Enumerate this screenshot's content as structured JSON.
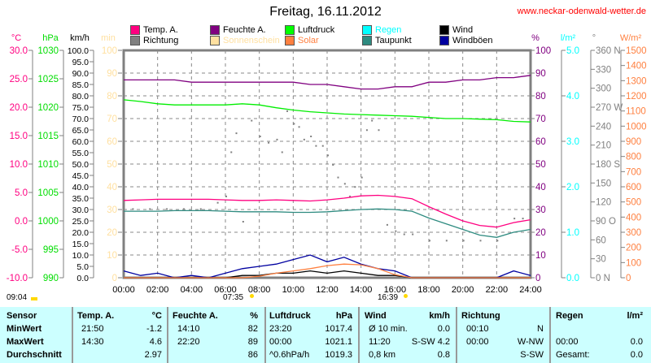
{
  "title": "Freitag, 16.11.2012",
  "url": "www.neckar-odenwald-wetter.de",
  "legend": [
    {
      "label": "Temp. A.",
      "color": "#ff0080"
    },
    {
      "label": "Feuchte A.",
      "color": "#800080"
    },
    {
      "label": "Luftdruck",
      "color": "#00ff00"
    },
    {
      "label": "Regen",
      "color": "#00ffff"
    },
    {
      "label": "Wind",
      "color": "#000000"
    },
    {
      "label": "Richtung",
      "color": "#808080"
    },
    {
      "label": "Sonnenschein",
      "color": "#ffe0a0"
    },
    {
      "label": "Solar",
      "color": "#ff8040"
    },
    {
      "label": "Taupunkt",
      "color": "#2e8b80"
    },
    {
      "label": "Windböen",
      "color": "#0000a0"
    }
  ],
  "chart_data": {
    "type": "line",
    "title": "Freitag, 16.11.2012",
    "x_ticks": [
      "00:00",
      "02:00",
      "04:00",
      "06:00",
      "08:00",
      "10:00",
      "12:00",
      "14:00",
      "16:00",
      "18:00",
      "20:00",
      "22:00",
      "24:00"
    ],
    "axes": [
      {
        "unit": "°C",
        "color": "#ff0080",
        "min": -10,
        "max": 30,
        "ticks": [
          "30.0",
          "25.0",
          "20.0",
          "15.0",
          "10.0",
          "5.0",
          "0.0",
          "-5.0",
          "-10.0"
        ]
      },
      {
        "unit": "hPa",
        "color": "#00dd00",
        "min": 990,
        "max": 1030,
        "ticks": [
          "1030",
          "1025",
          "1020",
          "1015",
          "1010",
          "1005",
          "1000",
          "995",
          "990"
        ]
      },
      {
        "unit": "km/h",
        "color": "#000000",
        "min": 0,
        "max": 100,
        "ticks": [
          "100.0",
          "95.0",
          "90.0",
          "85.0",
          "80.0",
          "75.0",
          "70.0",
          "65.0",
          "60.0",
          "55.0",
          "50.0",
          "45.0",
          "40.0",
          "35.0",
          "30.0",
          "25.0",
          "20.0",
          "15.0",
          "10.0",
          "5.0",
          "0.0"
        ]
      },
      {
        "unit": "min",
        "color": "#ffe0a0",
        "min": 0,
        "max": 100,
        "ticks": [
          "100",
          "90",
          "80",
          "70",
          "60",
          "50",
          "40",
          "30",
          "20",
          "10",
          "0"
        ]
      },
      {
        "unit": "%",
        "color": "#800080",
        "min": 0,
        "max": 100,
        "ticks": [
          "100",
          "90",
          "80",
          "70",
          "60",
          "50",
          "40",
          "30",
          "20",
          "10",
          "0"
        ]
      },
      {
        "unit": "l/m²",
        "color": "#00ffff",
        "min": 0,
        "max": 5,
        "ticks": [
          "5.0",
          "4.0",
          "3.0",
          "2.0",
          "1.0",
          "0.0"
        ]
      },
      {
        "unit": "°",
        "color": "#808080",
        "min": 0,
        "max": 360,
        "ticks": [
          "360 N",
          "330",
          "300",
          "270 W",
          "240",
          "210",
          "180 S",
          "150",
          "120",
          "90 O",
          "60",
          "30",
          "0 N"
        ]
      },
      {
        "unit": "W/m²",
        "color": "#ff8040",
        "min": 0,
        "max": 1500,
        "ticks": [
          "1500",
          "1400",
          "1300",
          "1200",
          "1100",
          "1000",
          "900",
          "800",
          "700",
          "600",
          "500",
          "400",
          "300",
          "200",
          "100",
          "0"
        ]
      }
    ],
    "hours": [
      0,
      1,
      2,
      3,
      4,
      5,
      6,
      7,
      8,
      9,
      10,
      11,
      12,
      13,
      14,
      15,
      16,
      17,
      18,
      19,
      20,
      21,
      22,
      23,
      24
    ],
    "series": [
      {
        "name": "Temp. A.",
        "axis": 0,
        "color": "#ff0080",
        "values": [
          3.6,
          3.7,
          3.8,
          3.8,
          3.8,
          3.8,
          3.7,
          3.6,
          3.6,
          3.7,
          3.6,
          3.5,
          3.7,
          4.0,
          4.4,
          4.5,
          4.3,
          3.9,
          2.5,
          1.2,
          0.0,
          -0.8,
          -1.1,
          -0.3,
          0.2
        ]
      },
      {
        "name": "Taupunkt",
        "axis": 0,
        "color": "#2e8b80",
        "values": [
          1.7,
          1.7,
          1.7,
          1.8,
          1.8,
          1.8,
          1.7,
          1.6,
          1.6,
          1.6,
          1.5,
          1.5,
          1.6,
          1.8,
          2.0,
          2.1,
          2.0,
          1.7,
          0.5,
          -0.5,
          -1.5,
          -2.5,
          -2.9,
          -2.0,
          -1.5
        ]
      },
      {
        "name": "Luftdruck",
        "axis": 1,
        "color": "#00ee00",
        "values": [
          1021.3,
          1021.0,
          1020.6,
          1020.4,
          1020.4,
          1020.4,
          1020.4,
          1020.6,
          1020.4,
          1019.9,
          1019.5,
          1019.2,
          1019.0,
          1018.8,
          1018.7,
          1018.6,
          1018.5,
          1018.4,
          1018.2,
          1018.0,
          1018.0,
          1017.9,
          1017.8,
          1017.5,
          1017.4
        ]
      },
      {
        "name": "Feuchte A.",
        "axis": 4,
        "color": "#800080",
        "values": [
          87,
          87,
          87,
          87,
          86,
          86,
          86,
          86,
          86,
          86,
          86,
          85,
          85,
          84,
          83,
          83,
          84,
          84,
          86,
          86,
          87,
          87,
          88,
          88,
          89
        ]
      },
      {
        "name": "Windböen",
        "axis": 2,
        "color": "#0000a0",
        "values": [
          3,
          1,
          2,
          0,
          1,
          0,
          2,
          4,
          5,
          6,
          8,
          10,
          7,
          9,
          6,
          4,
          3,
          0,
          0,
          0,
          0,
          0,
          0,
          3,
          1
        ]
      },
      {
        "name": "Wind",
        "axis": 2,
        "color": "#000000",
        "values": [
          0,
          0,
          0,
          0,
          0,
          0,
          0,
          1,
          1,
          2,
          2,
          3,
          2,
          3,
          2,
          1,
          1,
          0,
          0,
          0,
          0,
          0,
          0,
          0,
          0
        ]
      },
      {
        "name": "Solar",
        "axis": 7,
        "color": "#ff8040",
        "values": [
          0,
          0,
          0,
          0,
          0,
          0,
          0,
          0,
          10,
          30,
          45,
          60,
          80,
          90,
          85,
          60,
          20,
          0,
          0,
          0,
          0,
          0,
          0,
          0,
          0
        ]
      }
    ],
    "direction_points": [
      [
        0.5,
        110
      ],
      [
        1.5,
        110
      ],
      [
        2.5,
        110
      ],
      [
        3.5,
        110
      ],
      [
        4.5,
        110
      ],
      [
        5.5,
        120
      ],
      [
        6,
        130
      ],
      [
        6.3,
        200
      ],
      [
        6.6,
        230
      ],
      [
        7,
        90
      ],
      [
        7.5,
        250
      ],
      [
        8,
        225
      ],
      [
        8.5,
        215
      ],
      [
        9,
        220
      ],
      [
        9.3,
        200
      ],
      [
        9.6,
        265
      ],
      [
        10,
        245
      ],
      [
        10.3,
        240
      ],
      [
        10.6,
        220
      ],
      [
        11,
        225
      ],
      [
        11.3,
        210
      ],
      [
        11.7,
        210
      ],
      [
        12,
        195
      ],
      [
        12.3,
        180
      ],
      [
        12.6,
        160
      ],
      [
        13,
        150
      ],
      [
        13.3,
        130
      ],
      [
        13.6,
        145
      ],
      [
        14,
        160
      ],
      [
        14.3,
        235
      ],
      [
        14.6,
        250
      ],
      [
        15,
        235
      ],
      [
        15.5,
        85
      ],
      [
        16,
        75
      ],
      [
        16.5,
        70
      ],
      [
        17,
        70
      ],
      [
        18,
        60
      ],
      [
        19,
        60
      ],
      [
        20,
        60
      ],
      [
        21,
        60
      ],
      [
        22,
        60
      ],
      [
        23,
        95
      ],
      [
        23.5,
        95
      ]
    ]
  },
  "sun": {
    "moonrise": "09:04",
    "sunrise": "07:35",
    "sunset": "16:39"
  },
  "table": {
    "headers": [
      "Sensor",
      "Temp. A.",
      "°C",
      "Feuchte A.",
      "%",
      "Luftdruck",
      "hPa",
      "Wind",
      "km/h",
      "Richtung",
      "Regen",
      "l/m²"
    ],
    "rows": [
      {
        "label": "MinWert",
        "temp_time": "21:50",
        "temp": "-1.2",
        "hum_time": "14:10",
        "hum": "82",
        "press_time": "23:20",
        "press": "1017.4",
        "wind_time": "Ø 10 min.",
        "wind": "0.0",
        "dir_time": "00:10",
        "dir": "N",
        "rain_time": "",
        "rain": ""
      },
      {
        "label": "MaxWert",
        "temp_time": "14:30",
        "temp": "4.6",
        "hum_time": "22:20",
        "hum": "89",
        "press_time": "00:00",
        "press": "1021.1",
        "wind_time": "11:20",
        "wind": "S-SW 4.2",
        "dir_time": "00:00",
        "dir": "W-NW",
        "rain_time": "00:00",
        "rain": "0.0"
      },
      {
        "label": "Durchschnitt",
        "temp_time": "",
        "temp": "2.97",
        "hum_time": "",
        "hum": "86",
        "press_time": "^0.6hPa/h",
        "press": "1019.3",
        "wind_time": "0,8 km",
        "wind": "0.8",
        "dir_time": "",
        "dir": "S-SW",
        "rain_time": "Gesamt:",
        "rain": "0.0"
      }
    ]
  }
}
